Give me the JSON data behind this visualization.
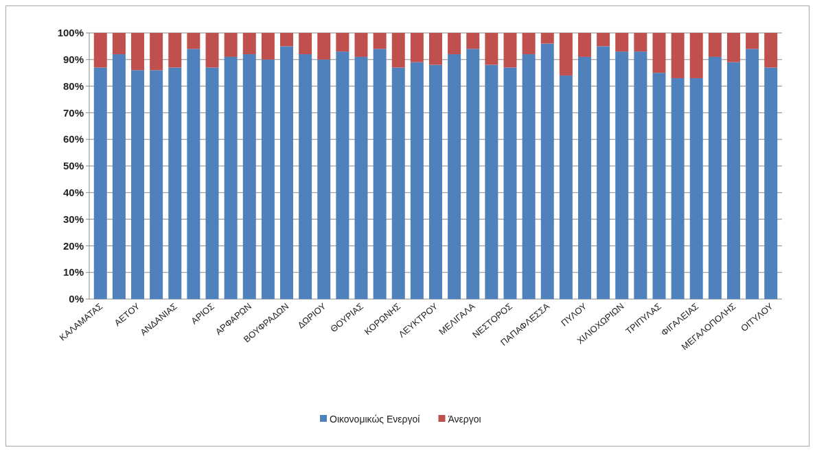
{
  "chart_data": {
    "type": "bar",
    "stacked": true,
    "categories": [
      "ΚΑΛΑΜΑΤΑΣ",
      null,
      "ΑΕΤΟΥ",
      null,
      "ΑΝΔΑΝΙΑΣ",
      null,
      "ΑΡΙΟΣ",
      null,
      "ΑΡΦΑΡΩΝ",
      null,
      "ΒΟΥΦΡΑΔΩΝ",
      null,
      "ΔΩΡΙΟΥ",
      null,
      "ΘΟΥΡΙΑΣ",
      null,
      "ΚΟΡΩΝΗΣ",
      null,
      "ΛΕΥΚΤΡΟΥ",
      null,
      "ΜΕΛΙΓΑΛΑ",
      null,
      "ΝΕΣΤΟΡΟΣ",
      null,
      "ΠΑΠΑΦΛΕΣΣΑ",
      null,
      "ΠΥΛΟΥ",
      null,
      "ΧΙΛΙΟΧΩΡΙΩΝ",
      null,
      "ΤΡΙΠΥΛΑΣ",
      null,
      "ΦΙΓΑΛΕΙΑΣ",
      null,
      "ΜΕΓΑΛΟΠΟΛΗΣ",
      null,
      "ΟΙΤΥΛΟΥ"
    ],
    "series": [
      {
        "name": "Οικονομικώς Ενεργοί",
        "color": "#4f81bd",
        "values": [
          87,
          92,
          86,
          86,
          87,
          94,
          87,
          91,
          92,
          90,
          95,
          92,
          90,
          93,
          91,
          94,
          87,
          89,
          88,
          92,
          94,
          88,
          87,
          92,
          96,
          84,
          91,
          95,
          93,
          93,
          85,
          83,
          83,
          91,
          89,
          94,
          87
        ]
      },
      {
        "name": "Άνεργοι",
        "color": "#c0504d",
        "values": [
          13,
          8,
          14,
          14,
          13,
          6,
          13,
          9,
          8,
          10,
          5,
          8,
          10,
          7,
          9,
          6,
          13,
          11,
          12,
          8,
          6,
          12,
          13,
          8,
          4,
          16,
          9,
          5,
          7,
          7,
          15,
          17,
          17,
          9,
          11,
          6,
          13
        ]
      }
    ],
    "ylim": [
      0,
      100
    ],
    "yticks": [
      {
        "value": 0,
        "label": "0%"
      },
      {
        "value": 10,
        "label": "10%"
      },
      {
        "value": 20,
        "label": "20%"
      },
      {
        "value": 30,
        "label": "30%"
      },
      {
        "value": 40,
        "label": "40%"
      },
      {
        "value": 50,
        "label": "50%"
      },
      {
        "value": 60,
        "label": "60%"
      },
      {
        "value": 70,
        "label": "70%"
      },
      {
        "value": 80,
        "label": "80%"
      },
      {
        "value": 90,
        "label": "90%"
      },
      {
        "value": 100,
        "label": "100%"
      }
    ],
    "grid": "y",
    "legend": "bottom"
  }
}
